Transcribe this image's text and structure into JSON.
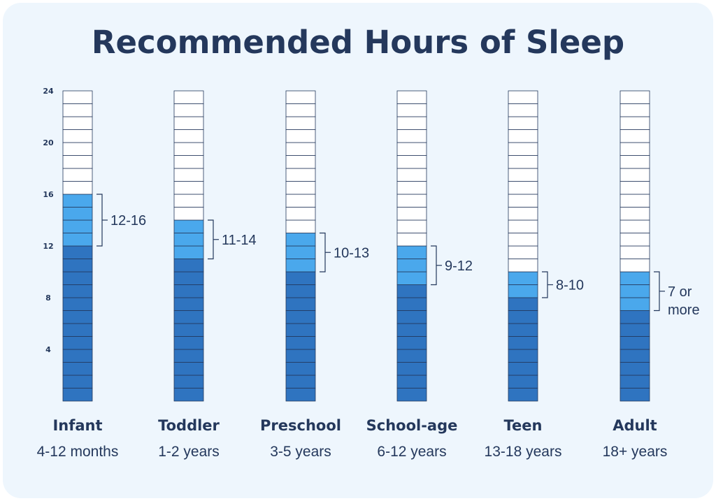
{
  "title": "Recommended Hours of Sleep",
  "colors": {
    "background": "#eef6fd",
    "title": "#24385c",
    "minimum_fill": "#2f74c0",
    "range_fill": "#4aa8ec",
    "empty_fill": "#ffffff",
    "outline": "#24385c"
  },
  "chart_data": {
    "type": "bar",
    "yticks": [
      "24",
      "20",
      "16",
      "12",
      "8",
      "4"
    ],
    "ylim": [
      0,
      24
    ],
    "grid": false,
    "categories": [
      {
        "name": "Infant",
        "sub": "4-12 months",
        "min": 12,
        "max": 16,
        "range_label": [
          "12-16"
        ]
      },
      {
        "name": "Toddler",
        "sub": "1-2 years",
        "min": 11,
        "max": 14,
        "range_label": [
          "11-14"
        ]
      },
      {
        "name": "Preschool",
        "sub": "3-5 years",
        "min": 10,
        "max": 13,
        "range_label": [
          "10-13"
        ]
      },
      {
        "name": "School-age",
        "sub": "6-12 years",
        "min": 9,
        "max": 12,
        "range_label": [
          "9-12"
        ]
      },
      {
        "name": "Teen",
        "sub": "13-18 years",
        "min": 8,
        "max": 10,
        "range_label": [
          "8-10"
        ]
      },
      {
        "name": "Adult",
        "sub": "18+ years",
        "min": 7,
        "max": 10,
        "range_label": [
          "7 or",
          "more"
        ]
      }
    ]
  }
}
